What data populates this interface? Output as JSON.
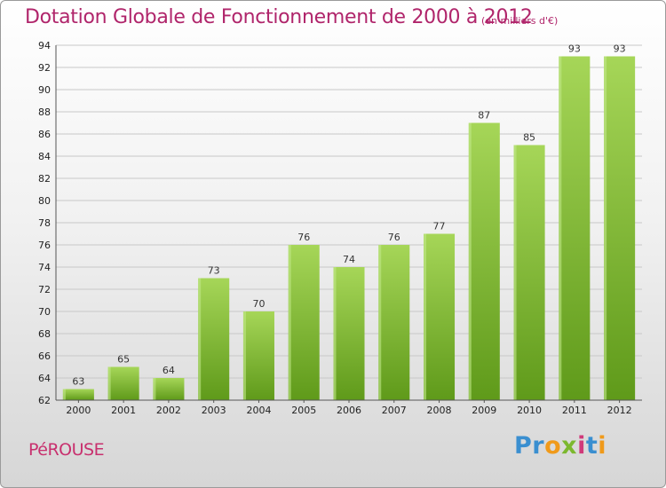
{
  "header": {
    "title": "Dotation Globale de Fonctionnement de 2000 à 2012",
    "subtitle": "(en milliers d'€)"
  },
  "footer": {
    "commune": "PéROUSE",
    "logo": "Proxiti"
  },
  "colors": {
    "title": "#b0256b",
    "bar_top": "#a6d658",
    "bar_bottom": "#5f9a1a",
    "grid": "#c8c8c8"
  },
  "chart_data": {
    "type": "bar",
    "title": "Dotation Globale de Fonctionnement de 2000 à 2012",
    "subtitle": "(en milliers d'€)",
    "categories": [
      "2000",
      "2001",
      "2002",
      "2003",
      "2004",
      "2005",
      "2006",
      "2007",
      "2008",
      "2009",
      "2010",
      "2011",
      "2012"
    ],
    "values": [
      63,
      65,
      64,
      73,
      70,
      76,
      74,
      76,
      77,
      87,
      85,
      93,
      93
    ],
    "ylim": [
      62,
      94
    ],
    "yticks": [
      62,
      64,
      66,
      68,
      70,
      72,
      74,
      76,
      78,
      80,
      82,
      84,
      86,
      88,
      90,
      92,
      94
    ],
    "xlabel": "",
    "ylabel": "",
    "grid": true,
    "data_labels": true,
    "legend": "none"
  }
}
